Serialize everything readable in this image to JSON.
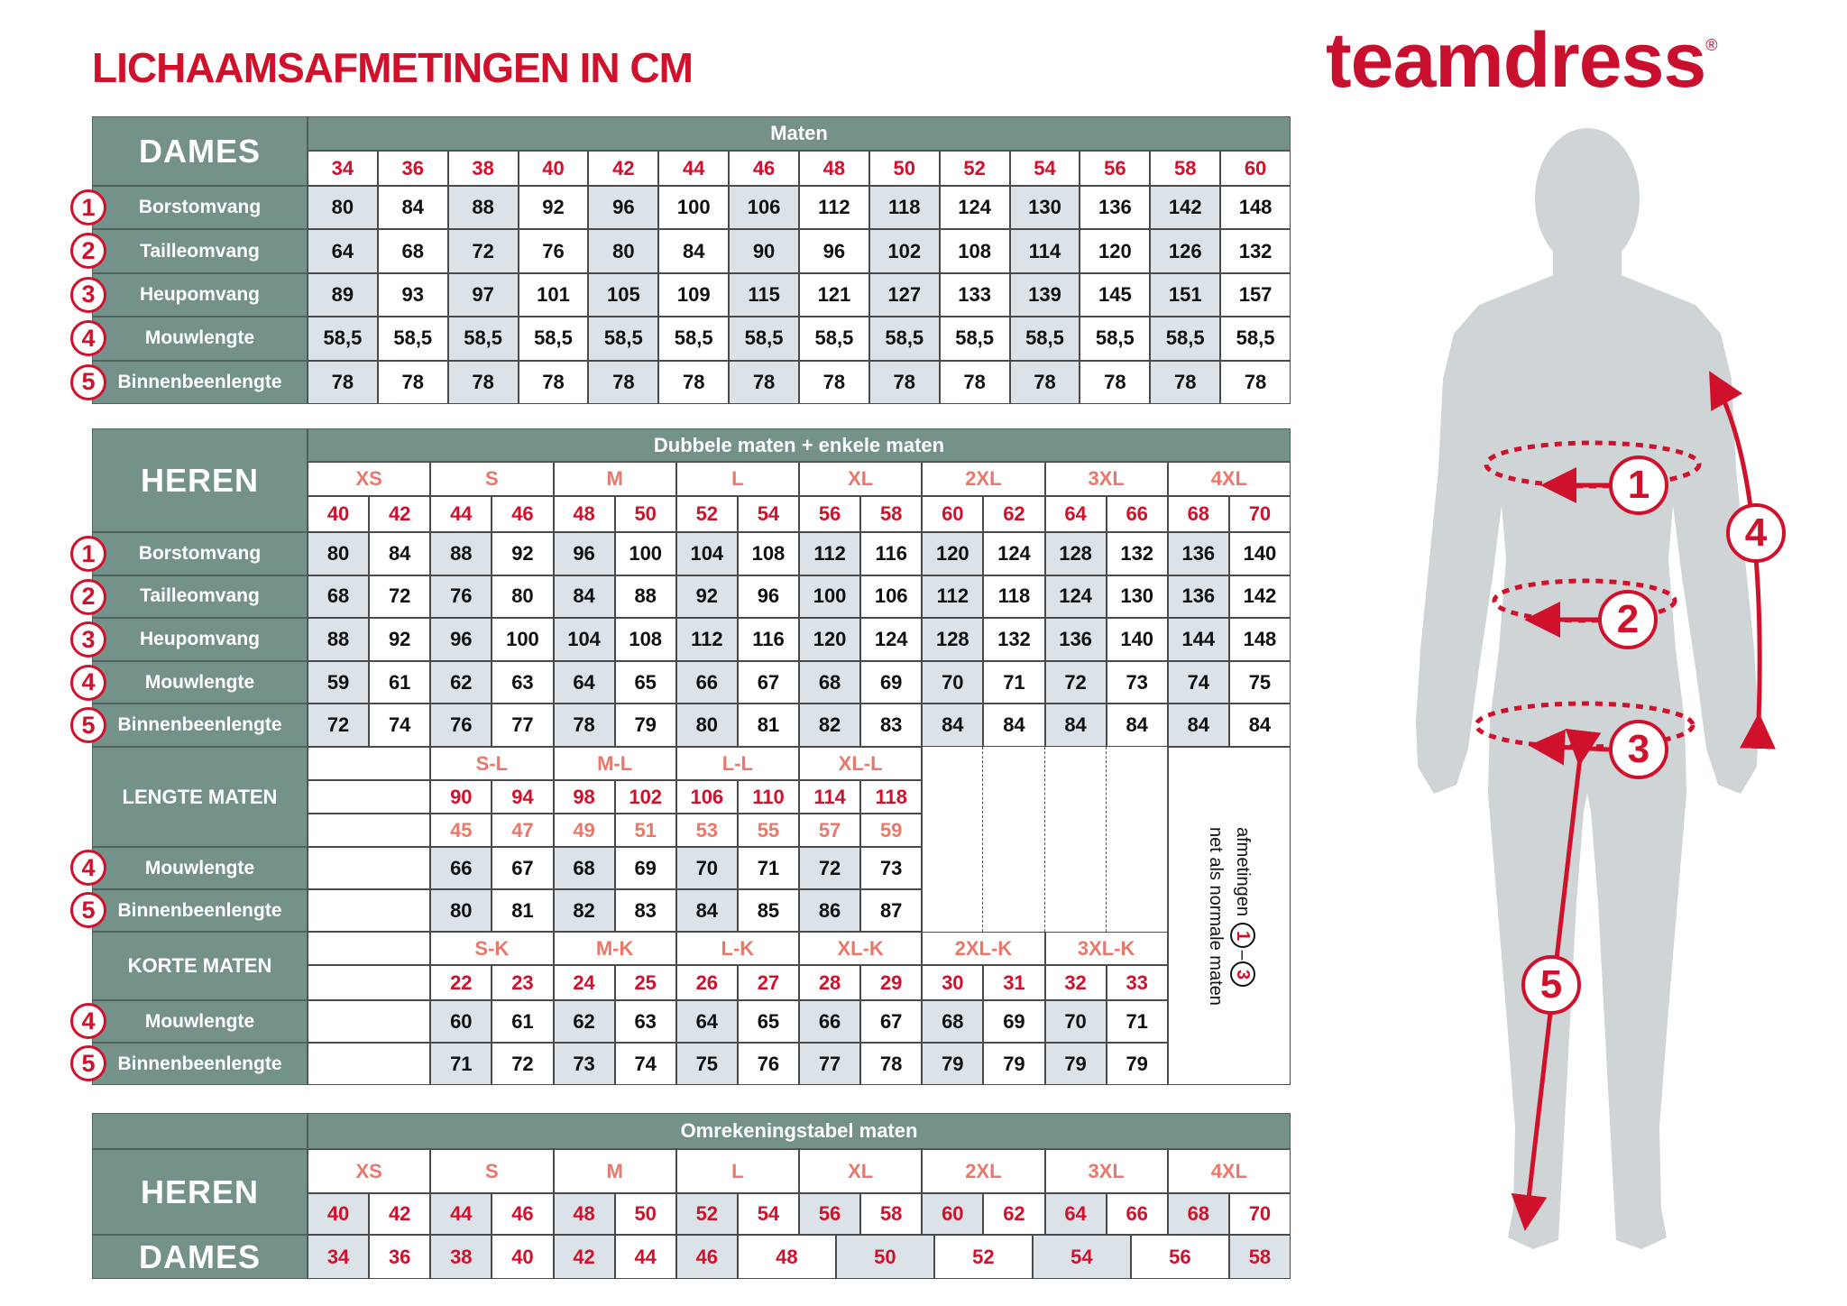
{
  "title": "LICHAAMSAFMETINGEN IN CM",
  "logo": {
    "text": "teamdress",
    "mark": "®"
  },
  "colors": {
    "accent": "#d0112b",
    "header_bg": "#74928a",
    "shade": "#dbe3e8",
    "letter_size": "#e8796a"
  },
  "dames": {
    "label": "DAMES",
    "header": "Maten",
    "sizes": [
      "34",
      "36",
      "38",
      "40",
      "42",
      "44",
      "46",
      "48",
      "50",
      "52",
      "54",
      "56",
      "58",
      "60"
    ],
    "rows": [
      {
        "num": "1",
        "label": "Borstomvang",
        "values": [
          "80",
          "84",
          "88",
          "92",
          "96",
          "100",
          "106",
          "112",
          "118",
          "124",
          "130",
          "136",
          "142",
          "148"
        ]
      },
      {
        "num": "2",
        "label": "Tailleomvang",
        "values": [
          "64",
          "68",
          "72",
          "76",
          "80",
          "84",
          "90",
          "96",
          "102",
          "108",
          "114",
          "120",
          "126",
          "132"
        ]
      },
      {
        "num": "3",
        "label": "Heupomvang",
        "values": [
          "89",
          "93",
          "97",
          "101",
          "105",
          "109",
          "115",
          "121",
          "127",
          "133",
          "139",
          "145",
          "151",
          "157"
        ]
      },
      {
        "num": "4",
        "label": "Mouwlengte",
        "values": [
          "58,5",
          "58,5",
          "58,5",
          "58,5",
          "58,5",
          "58,5",
          "58,5",
          "58,5",
          "58,5",
          "58,5",
          "58,5",
          "58,5",
          "58,5",
          "58,5"
        ]
      },
      {
        "num": "5",
        "label": "Binnenbeenlengte",
        "values": [
          "78",
          "78",
          "78",
          "78",
          "78",
          "78",
          "78",
          "78",
          "78",
          "78",
          "78",
          "78",
          "78",
          "78"
        ]
      }
    ]
  },
  "heren": {
    "label": "HEREN",
    "header": "Dubbele maten + enkele maten",
    "groups": [
      "XS",
      "S",
      "M",
      "L",
      "XL",
      "2XL",
      "3XL",
      "4XL"
    ],
    "sizes": [
      "40",
      "42",
      "44",
      "46",
      "48",
      "50",
      "52",
      "54",
      "56",
      "58",
      "60",
      "62",
      "64",
      "66",
      "68",
      "70"
    ],
    "rows": [
      {
        "num": "1",
        "label": "Borstomvang",
        "values": [
          "80",
          "84",
          "88",
          "92",
          "96",
          "100",
          "104",
          "108",
          "112",
          "116",
          "120",
          "124",
          "128",
          "132",
          "136",
          "140"
        ]
      },
      {
        "num": "2",
        "label": "Tailleomvang",
        "values": [
          "68",
          "72",
          "76",
          "80",
          "84",
          "88",
          "92",
          "96",
          "100",
          "106",
          "112",
          "118",
          "124",
          "130",
          "136",
          "142"
        ]
      },
      {
        "num": "3",
        "label": "Heupomvang",
        "values": [
          "88",
          "92",
          "96",
          "100",
          "104",
          "108",
          "112",
          "116",
          "120",
          "124",
          "128",
          "132",
          "136",
          "140",
          "144",
          "148"
        ]
      },
      {
        "num": "4",
        "label": "Mouwlengte",
        "values": [
          "59",
          "61",
          "62",
          "63",
          "64",
          "65",
          "66",
          "67",
          "68",
          "69",
          "70",
          "71",
          "72",
          "73",
          "74",
          "75"
        ]
      },
      {
        "num": "5",
        "label": "Binnenbeenlengte",
        "values": [
          "72",
          "74",
          "76",
          "77",
          "78",
          "79",
          "80",
          "81",
          "82",
          "83",
          "84",
          "84",
          "84",
          "84",
          "84",
          "84"
        ]
      }
    ]
  },
  "lengte": {
    "label": "LENGTE MATEN",
    "groups": [
      "S-L",
      "M-L",
      "L-L",
      "XL-L"
    ],
    "sizes": [
      "90",
      "94",
      "98",
      "102",
      "106",
      "110",
      "114",
      "118"
    ],
    "sizes2": [
      "45",
      "47",
      "49",
      "51",
      "53",
      "55",
      "57",
      "59"
    ],
    "rows": [
      {
        "num": "4",
        "label": "Mouwlengte",
        "values": [
          "66",
          "67",
          "68",
          "69",
          "70",
          "71",
          "72",
          "73"
        ]
      },
      {
        "num": "5",
        "label": "Binnenbeenlengte",
        "values": [
          "80",
          "81",
          "82",
          "83",
          "84",
          "85",
          "86",
          "87"
        ]
      }
    ]
  },
  "korte": {
    "label": "KORTE MATEN",
    "groups": [
      "S-K",
      "M-K",
      "L-K",
      "XL-K",
      "2XL-K",
      "3XL-K"
    ],
    "sizes": [
      "22",
      "23",
      "24",
      "25",
      "26",
      "27",
      "28",
      "29",
      "30",
      "31",
      "32",
      "33"
    ],
    "rows": [
      {
        "num": "4",
        "label": "Mouwlengte",
        "values": [
          "60",
          "61",
          "62",
          "63",
          "64",
          "65",
          "66",
          "67",
          "68",
          "69",
          "70",
          "71"
        ]
      },
      {
        "num": "5",
        "label": "Binnenbeenlengte",
        "values": [
          "71",
          "72",
          "73",
          "74",
          "75",
          "76",
          "77",
          "78",
          "79",
          "79",
          "79",
          "79"
        ]
      }
    ]
  },
  "note": {
    "line1": "afmetingen",
    "from": "1",
    "dash": "–",
    "to": "3",
    "line2": "net als normale maten"
  },
  "omrekening": {
    "header": "Omrekeningstabel maten",
    "heren_label": "HEREN",
    "groups": [
      "XS",
      "S",
      "M",
      "L",
      "XL",
      "2XL",
      "3XL",
      "4XL"
    ],
    "heren_sizes": [
      "40",
      "42",
      "44",
      "46",
      "48",
      "50",
      "52",
      "54",
      "56",
      "58",
      "60",
      "62",
      "64",
      "66",
      "68",
      "70"
    ],
    "dames_label": "DAMES",
    "dames_sizes": [
      "34",
      "36",
      "38",
      "40",
      "42",
      "44",
      "46",
      "48",
      "50",
      "52",
      "54",
      "56",
      "58"
    ]
  },
  "figure": {
    "markers": [
      "1",
      "2",
      "3",
      "4",
      "5"
    ],
    "silhouette_color": "#cfd4d7"
  }
}
